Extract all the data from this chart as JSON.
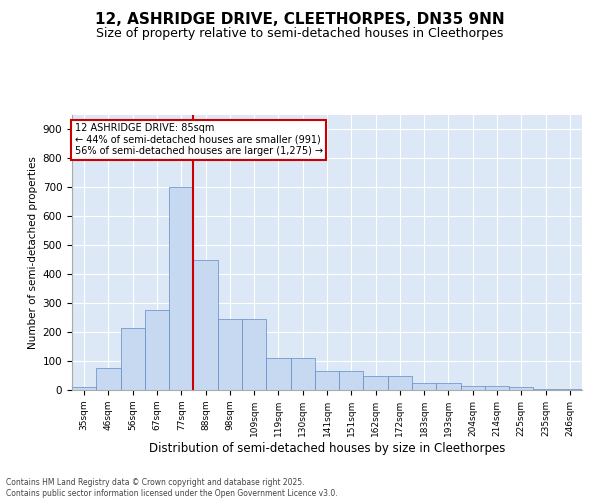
{
  "title": "12, ASHRIDGE DRIVE, CLEETHORPES, DN35 9NN",
  "subtitle": "Size of property relative to semi-detached houses in Cleethorpes",
  "xlabel": "Distribution of semi-detached houses by size in Cleethorpes",
  "ylabel": "Number of semi-detached properties",
  "bar_labels": [
    "35sqm",
    "46sqm",
    "56sqm",
    "67sqm",
    "77sqm",
    "88sqm",
    "98sqm",
    "109sqm",
    "119sqm",
    "130sqm",
    "141sqm",
    "151sqm",
    "162sqm",
    "172sqm",
    "183sqm",
    "193sqm",
    "204sqm",
    "214sqm",
    "225sqm",
    "235sqm",
    "246sqm"
  ],
  "bar_values": [
    10,
    75,
    215,
    275,
    700,
    450,
    245,
    245,
    110,
    110,
    65,
    65,
    50,
    50,
    25,
    25,
    15,
    15,
    10,
    5,
    2
  ],
  "bar_color": "#c6d9f0",
  "bar_edge_color": "#5b8cc8",
  "red_line_index": 5,
  "annotation_title": "12 ASHRIDGE DRIVE: 85sqm",
  "annotation_line1": "← 44% of semi-detached houses are smaller (991)",
  "annotation_line2": "56% of semi-detached houses are larger (1,275) →",
  "ylim": [
    0,
    950
  ],
  "yticks": [
    0,
    100,
    200,
    300,
    400,
    500,
    600,
    700,
    800,
    900
  ],
  "background_color": "#dce8f5",
  "footer": "Contains HM Land Registry data © Crown copyright and database right 2025.\nContains public sector information licensed under the Open Government Licence v3.0.",
  "title_fontsize": 11,
  "subtitle_fontsize": 9,
  "annotation_box_color": "#ffffff",
  "annotation_box_edge": "#cc0000",
  "red_line_color": "#cc0000",
  "grid_color": "#ffffff"
}
